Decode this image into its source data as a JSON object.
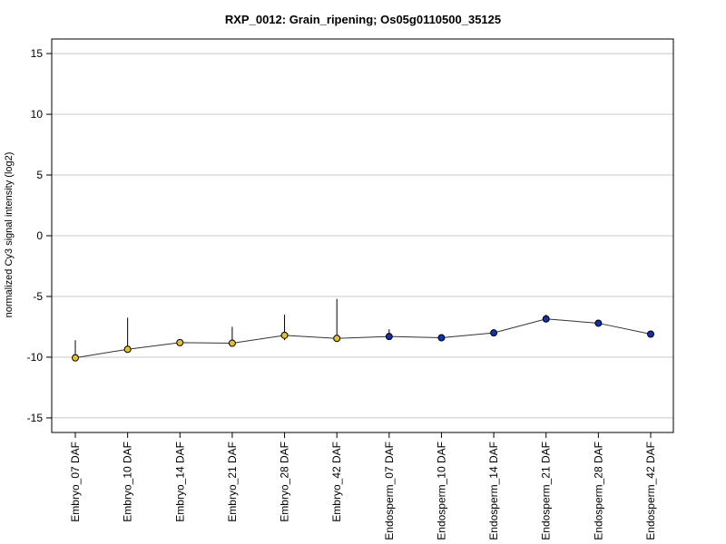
{
  "chart_data": {
    "type": "line",
    "title": "RXP_0012: Grain_ripening; Os05g0110500_35125",
    "xlabel": "",
    "ylabel": "normalized Cy3 signal intensity (log2)",
    "ylim": [
      -16.2,
      16.2
    ],
    "yticks": [
      -15,
      -10,
      -5,
      0,
      5,
      10,
      15
    ],
    "grid": true,
    "categories": [
      "Embryo_07 DAF",
      "Embryo_10 DAF",
      "Embryo_14 DAF",
      "Embryo_21 DAF",
      "Embryo_28 DAF",
      "Embryo_42 DAF",
      "Endosperm_07 DAF",
      "Endosperm_10 DAF",
      "Endosperm_14 DAF",
      "Endosperm_21 DAF",
      "Endosperm_28 DAF",
      "Endosperm_42 DAF"
    ],
    "series": [
      {
        "values": [
          -10.05,
          -9.35,
          -8.8,
          -8.85,
          -8.2,
          -8.45,
          -8.3,
          -8.4,
          -8.0,
          -6.85,
          -7.2,
          -8.1
        ],
        "upper": [
          -8.6,
          -6.75,
          -8.7,
          -7.5,
          -6.5,
          -5.2,
          -7.7,
          -8.3,
          -7.8,
          -6.5,
          -7.05,
          -7.95
        ],
        "lower": [
          -10.15,
          -9.45,
          -8.9,
          -9.0,
          -8.6,
          -8.6,
          -8.5,
          -8.55,
          -8.2,
          -7.05,
          -7.35,
          -8.25
        ],
        "point_colors": [
          "#e8c020",
          "#e8c020",
          "#e8c020",
          "#e8c020",
          "#e8c020",
          "#e8c020",
          "#1030b0",
          "#1030b0",
          "#1030b0",
          "#1030b0",
          "#1030b0",
          "#1030b0"
        ]
      }
    ]
  }
}
